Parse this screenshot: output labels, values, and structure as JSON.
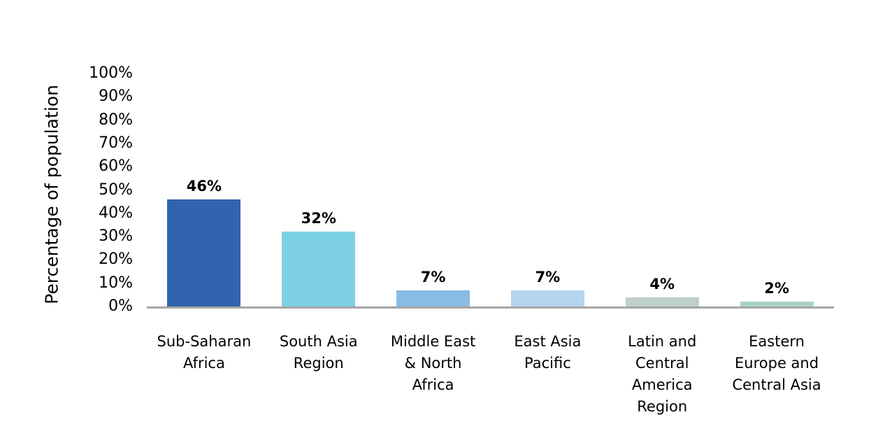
{
  "chart_data": {
    "type": "bar",
    "title": "",
    "ylabel": "Percentage of population",
    "xlabel": "",
    "ylim": [
      0,
      100
    ],
    "ytick_step": 10,
    "yticks": [
      "100%",
      "90%",
      "80%",
      "70%",
      "60%",
      "50%",
      "40%",
      "30%",
      "20%",
      "10%",
      "0%"
    ],
    "categories": [
      "Sub-Saharan Africa",
      "South Asia Region",
      "Middle East & North Africa",
      "East Asia Pacific",
      "Latin and Central America Region",
      "Eastern Europe and Central Asia"
    ],
    "category_lines": [
      [
        "Sub-Saharan",
        "Africa"
      ],
      [
        "South Asia",
        "Region"
      ],
      [
        "Middle East",
        "& North",
        "Africa"
      ],
      [
        "East Asia",
        "Pacific"
      ],
      [
        "Latin and",
        "Central",
        "America",
        "Region"
      ],
      [
        "Eastern",
        "Europe and",
        "Central Asia"
      ]
    ],
    "values": [
      46,
      32,
      7,
      7,
      4,
      2
    ],
    "value_labels": [
      "46%",
      "32%",
      "7%",
      "7%",
      "4%",
      "2%"
    ],
    "bar_colors": [
      "#3263AE",
      "#7ED1E2",
      "#87BCE4",
      "#B4D4F0",
      "#BECFCC",
      "#A9D3C6"
    ],
    "axis_line_color": "#A6A6A6",
    "text_color": "#000000",
    "background_color": "#FFFFFF",
    "grid": false,
    "legend": false
  }
}
